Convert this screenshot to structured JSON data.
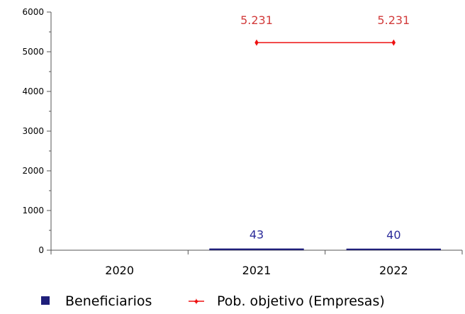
{
  "chart_data": {
    "type": "bar",
    "categories": [
      "2020",
      "2021",
      "2022"
    ],
    "ylim": [
      0,
      6000
    ],
    "yticks": [
      0,
      1000,
      2000,
      3000,
      4000,
      5000,
      6000
    ],
    "grid": false,
    "legend_position": "bottom",
    "series": [
      {
        "name": "Beneficiarios",
        "type": "bar",
        "color": "#1f1f7a",
        "label_color": "#2b2b9a",
        "values": [
          null,
          43,
          40
        ],
        "labels": [
          "",
          "43",
          "40"
        ]
      },
      {
        "name": "Pob. objetivo (Empresas)",
        "type": "line",
        "color": "#ee1111",
        "label_color": "#d23b3b",
        "values": [
          null,
          5231,
          5231
        ],
        "labels": [
          "",
          "5.231",
          "5.231"
        ]
      }
    ]
  }
}
